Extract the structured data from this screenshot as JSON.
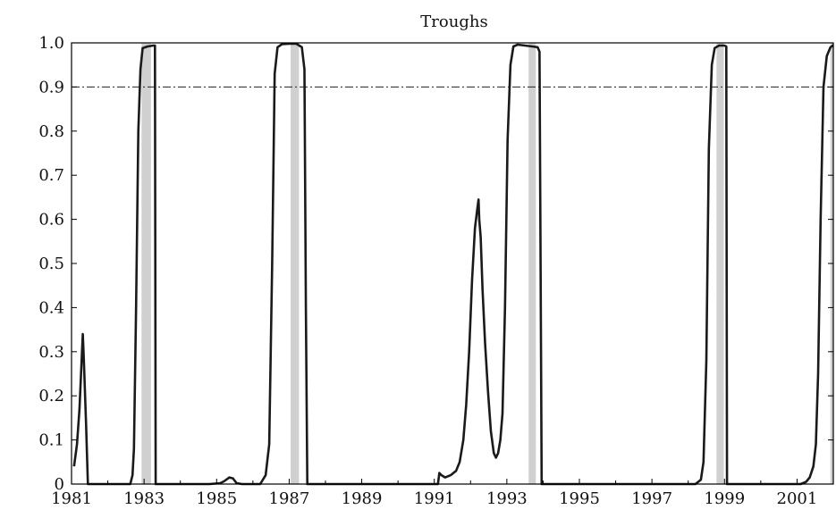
{
  "chart_data": {
    "type": "line",
    "title": "Troughs",
    "xlabel": "",
    "ylabel": "",
    "xlim": [
      1981.0,
      2002.0
    ],
    "ylim": [
      0,
      1.0
    ],
    "x_ticks": [
      1981,
      1983,
      1985,
      1987,
      1989,
      1991,
      1993,
      1995,
      1997,
      1999,
      2001
    ],
    "y_ticks": [
      0,
      0.1,
      0.2,
      0.3,
      0.4,
      0.5,
      0.6,
      0.7,
      0.8,
      0.9,
      1.0
    ],
    "y_tick_labels": [
      "0",
      "0.1",
      "0.2",
      "0.3",
      "0.4",
      "0.5",
      "0.6",
      "0.7",
      "0.8",
      "0.9",
      "1.0"
    ],
    "threshold": {
      "value": 0.9,
      "style": "dash-dot"
    },
    "shaded_periods": [
      {
        "start": 1982.93,
        "end": 1983.19
      },
      {
        "start": 1987.04,
        "end": 1987.27
      },
      {
        "start": 1993.6,
        "end": 1993.8
      },
      {
        "start": 1998.78,
        "end": 1998.98
      },
      {
        "start": 2001.92,
        "end": 2002.0
      }
    ],
    "series": [
      {
        "color": "#1a1a1a",
        "points": [
          [
            1981.07,
            0.04
          ],
          [
            1981.15,
            0.09
          ],
          [
            1981.22,
            0.17
          ],
          [
            1981.31,
            0.34
          ],
          [
            1981.34,
            0.28
          ],
          [
            1981.4,
            0.14
          ],
          [
            1981.45,
            0.0
          ],
          [
            1981.6,
            0.0
          ],
          [
            1981.9,
            0.0
          ],
          [
            1982.4,
            0.0
          ],
          [
            1982.62,
            0.0
          ],
          [
            1982.68,
            0.02
          ],
          [
            1982.72,
            0.08
          ],
          [
            1982.78,
            0.4
          ],
          [
            1982.84,
            0.8
          ],
          [
            1982.9,
            0.94
          ],
          [
            1982.96,
            0.988
          ],
          [
            1983.1,
            0.992
          ],
          [
            1983.25,
            0.994
          ],
          [
            1983.3,
            0.994
          ],
          [
            1983.32,
            0.0
          ],
          [
            1984.8,
            0.0
          ],
          [
            1985.1,
            0.002
          ],
          [
            1985.2,
            0.006
          ],
          [
            1985.35,
            0.015
          ],
          [
            1985.45,
            0.013
          ],
          [
            1985.55,
            0.002
          ],
          [
            1985.7,
            0.0
          ],
          [
            1986.2,
            0.0
          ],
          [
            1986.35,
            0.02
          ],
          [
            1986.45,
            0.09
          ],
          [
            1986.53,
            0.5
          ],
          [
            1986.6,
            0.93
          ],
          [
            1986.68,
            0.99
          ],
          [
            1986.8,
            0.997
          ],
          [
            1987.0,
            0.998
          ],
          [
            1987.2,
            0.998
          ],
          [
            1987.35,
            0.99
          ],
          [
            1987.42,
            0.94
          ],
          [
            1987.46,
            0.4
          ],
          [
            1987.5,
            0.0
          ],
          [
            1989.5,
            0.0
          ],
          [
            1991.0,
            0.0
          ],
          [
            1991.1,
            0.0
          ],
          [
            1991.14,
            0.025
          ],
          [
            1991.2,
            0.02
          ],
          [
            1991.3,
            0.015
          ],
          [
            1991.45,
            0.02
          ],
          [
            1991.6,
            0.03
          ],
          [
            1991.7,
            0.05
          ],
          [
            1991.8,
            0.1
          ],
          [
            1991.88,
            0.18
          ],
          [
            1991.96,
            0.3
          ],
          [
            1992.04,
            0.46
          ],
          [
            1992.12,
            0.58
          ],
          [
            1992.18,
            0.62
          ],
          [
            1992.22,
            0.645
          ],
          [
            1992.24,
            0.6
          ],
          [
            1992.28,
            0.56
          ],
          [
            1992.33,
            0.44
          ],
          [
            1992.4,
            0.32
          ],
          [
            1992.48,
            0.21
          ],
          [
            1992.56,
            0.12
          ],
          [
            1992.64,
            0.07
          ],
          [
            1992.7,
            0.06
          ],
          [
            1992.76,
            0.07
          ],
          [
            1992.82,
            0.1
          ],
          [
            1992.88,
            0.16
          ],
          [
            1992.95,
            0.4
          ],
          [
            1993.02,
            0.78
          ],
          [
            1993.1,
            0.95
          ],
          [
            1993.18,
            0.992
          ],
          [
            1993.3,
            0.996
          ],
          [
            1993.5,
            0.994
          ],
          [
            1993.7,
            0.992
          ],
          [
            1993.85,
            0.99
          ],
          [
            1993.9,
            0.98
          ],
          [
            1993.93,
            0.5
          ],
          [
            1993.96,
            0.0
          ],
          [
            1996.0,
            0.0
          ],
          [
            1998.2,
            0.0
          ],
          [
            1998.35,
            0.01
          ],
          [
            1998.42,
            0.05
          ],
          [
            1998.5,
            0.28
          ],
          [
            1998.57,
            0.76
          ],
          [
            1998.65,
            0.95
          ],
          [
            1998.73,
            0.988
          ],
          [
            1998.85,
            0.994
          ],
          [
            1999.0,
            0.994
          ],
          [
            1999.05,
            0.992
          ],
          [
            1999.07,
            0.0
          ],
          [
            2000.8,
            0.0
          ],
          [
            2001.1,
            0.0
          ],
          [
            2001.25,
            0.005
          ],
          [
            2001.35,
            0.015
          ],
          [
            2001.45,
            0.04
          ],
          [
            2001.52,
            0.09
          ],
          [
            2001.58,
            0.25
          ],
          [
            2001.65,
            0.6
          ],
          [
            2001.73,
            0.9
          ],
          [
            2001.82,
            0.97
          ],
          [
            2001.92,
            0.99
          ],
          [
            2002.0,
            0.995
          ]
        ]
      }
    ]
  }
}
